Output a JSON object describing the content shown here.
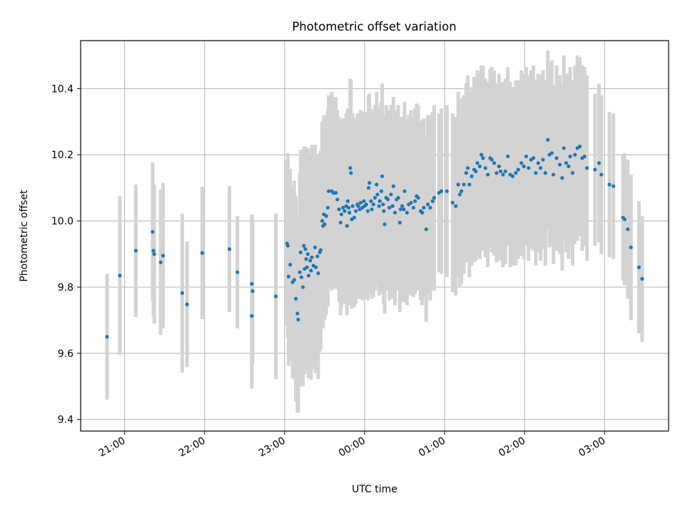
{
  "chart_data": {
    "type": "scatter",
    "title": "Photometric offset variation",
    "xlabel": "UTC time",
    "ylabel": "Photometric offset",
    "x_unit": "hours (UTC, relative to 00:00)",
    "xlim": [
      -3.55,
      3.8
    ],
    "ylim": [
      9.365,
      10.545
    ],
    "x_ticks": [
      -3,
      -2,
      -1,
      0,
      1,
      2,
      3
    ],
    "x_tick_labels": [
      "21:00",
      "22:00",
      "23:00",
      "00:00",
      "01:00",
      "02:00",
      "03:00"
    ],
    "y_ticks": [
      9.4,
      9.6,
      9.8,
      10.0,
      10.2,
      10.4
    ],
    "y_tick_labels": [
      "9.4",
      "9.6",
      "9.8",
      "10.0",
      "10.2",
      "10.4"
    ],
    "grid": true,
    "legend": false,
    "colors": {
      "points": "#1f77b4",
      "errorbars": "#d3d3d3",
      "grid": "#b0b0b0"
    },
    "points": [
      [
        -3.22,
        9.65,
        0.19
      ],
      [
        -3.06,
        9.835,
        0.24
      ],
      [
        -2.86,
        9.91,
        0.2
      ],
      [
        -2.65,
        9.967,
        0.21
      ],
      [
        -2.64,
        9.91,
        0.2
      ],
      [
        -2.63,
        9.9,
        0.21
      ],
      [
        -2.55,
        9.875,
        0.22
      ],
      [
        -2.52,
        9.895,
        0.22
      ],
      [
        -2.28,
        9.782,
        0.24
      ],
      [
        -2.22,
        9.748,
        0.19
      ],
      [
        -2.03,
        9.903,
        0.2
      ],
      [
        -1.69,
        9.915,
        0.19
      ],
      [
        -1.59,
        9.845,
        0.17
      ],
      [
        -1.41,
        9.81,
        0.21
      ],
      [
        -1.4,
        9.788,
        0.22
      ],
      [
        -1.41,
        9.713,
        0.22
      ],
      [
        -1.11,
        9.772,
        0.25
      ],
      [
        -0.97,
        9.932,
        0.25
      ],
      [
        -0.96,
        9.925,
        0.28
      ],
      [
        -0.95,
        9.832,
        0.27
      ],
      [
        -0.93,
        9.868,
        0.29
      ],
      [
        -0.9,
        9.815,
        0.29
      ],
      [
        -0.88,
        9.822,
        0.3
      ],
      [
        -0.86,
        9.765,
        0.31
      ],
      [
        -0.84,
        9.72,
        0.3
      ],
      [
        -0.83,
        9.702,
        0.28
      ],
      [
        -0.81,
        9.845,
        0.3
      ],
      [
        -0.8,
        9.905,
        0.31
      ],
      [
        -0.79,
        9.83,
        0.33
      ],
      [
        -0.77,
        9.8,
        0.3
      ],
      [
        -0.76,
        9.925,
        0.3
      ],
      [
        -0.75,
        9.855,
        0.32
      ],
      [
        -0.74,
        9.915,
        0.31
      ],
      [
        -0.73,
        9.885,
        0.33
      ],
      [
        -0.72,
        9.86,
        0.31
      ],
      [
        -0.71,
        9.9,
        0.32
      ],
      [
        -0.7,
        9.835,
        0.31
      ],
      [
        -0.68,
        9.88,
        0.32
      ],
      [
        -0.67,
        9.85,
        0.33
      ],
      [
        -0.66,
        9.89,
        0.34
      ],
      [
        -0.64,
        9.865,
        0.31
      ],
      [
        -0.62,
        9.92,
        0.31
      ],
      [
        -0.61,
        9.86,
        0.32
      ],
      [
        -0.59,
        9.893,
        0.31
      ],
      [
        -0.58,
        9.842,
        0.32
      ],
      [
        -0.56,
        9.905,
        0.3
      ],
      [
        -0.55,
        9.912,
        0.3
      ],
      [
        -0.53,
        10.0,
        0.3
      ],
      [
        -0.52,
        9.985,
        0.31
      ],
      [
        -0.51,
        10.02,
        0.3
      ],
      [
        -0.5,
        9.99,
        0.29
      ],
      [
        -0.48,
        10.015,
        0.3
      ],
      [
        -0.46,
        10.04,
        0.3
      ],
      [
        -0.45,
        10.09,
        0.29
      ],
      [
        -0.41,
        10.09,
        0.3
      ],
      [
        -0.39,
        10.085,
        0.28
      ],
      [
        -0.36,
        10.085,
        0.29
      ],
      [
        -0.34,
        10.065,
        0.27
      ],
      [
        -0.32,
        10.035,
        0.28
      ],
      [
        -0.3,
        9.995,
        0.28
      ],
      [
        -0.29,
        10.02,
        0.28
      ],
      [
        -0.27,
        10.04,
        0.27
      ],
      [
        -0.25,
        10.03,
        0.28
      ],
      [
        -0.23,
        10.045,
        0.28
      ],
      [
        -0.22,
        9.985,
        0.27
      ],
      [
        -0.21,
        10.06,
        0.28
      ],
      [
        -0.2,
        10.04,
        0.28
      ],
      [
        -0.19,
        10.025,
        0.28
      ],
      [
        -0.18,
        10.16,
        0.27
      ],
      [
        -0.17,
        10.145,
        0.28
      ],
      [
        -0.16,
        10.005,
        0.27
      ],
      [
        -0.15,
        10.045,
        0.28
      ],
      [
        -0.13,
        10.01,
        0.27
      ],
      [
        -0.11,
        10.03,
        0.28
      ],
      [
        -0.09,
        10.05,
        0.27
      ],
      [
        -0.08,
        10.045,
        0.28
      ],
      [
        -0.06,
        10.035,
        0.27
      ],
      [
        -0.05,
        10.055,
        0.28
      ],
      [
        -0.03,
        10.04,
        0.28
      ],
      [
        -0.01,
        10.06,
        0.27
      ],
      [
        0.0,
        10.045,
        0.28
      ],
      [
        0.02,
        10.05,
        0.28
      ],
      [
        0.04,
        10.03,
        0.27
      ],
      [
        0.05,
        10.1,
        0.28
      ],
      [
        0.06,
        10.115,
        0.27
      ],
      [
        0.08,
        10.06,
        0.28
      ],
      [
        0.09,
        10.035,
        0.27
      ],
      [
        0.11,
        10.05,
        0.28
      ],
      [
        0.13,
        10.07,
        0.28
      ],
      [
        0.15,
        10.11,
        0.28
      ],
      [
        0.16,
        10.08,
        0.27
      ],
      [
        0.18,
        10.045,
        0.27
      ],
      [
        0.19,
        10.06,
        0.28
      ],
      [
        0.21,
        10.09,
        0.27
      ],
      [
        0.22,
        10.135,
        0.28
      ],
      [
        0.23,
        10.05,
        0.27
      ],
      [
        0.24,
        10.03,
        0.28
      ],
      [
        0.25,
        9.99,
        0.27
      ],
      [
        0.27,
        10.07,
        0.28
      ],
      [
        0.29,
        10.065,
        0.27
      ],
      [
        0.31,
        10.04,
        0.28
      ],
      [
        0.33,
        10.08,
        0.27
      ],
      [
        0.35,
        10.045,
        0.28
      ],
      [
        0.36,
        10.105,
        0.27
      ],
      [
        0.38,
        10.025,
        0.28
      ],
      [
        0.4,
        10.065,
        0.27
      ],
      [
        0.42,
        10.07,
        0.28
      ],
      [
        0.44,
        9.995,
        0.27
      ],
      [
        0.45,
        10.035,
        0.28
      ],
      [
        0.47,
        10.045,
        0.27
      ],
      [
        0.49,
        10.035,
        0.28
      ],
      [
        0.5,
        10.09,
        0.27
      ],
      [
        0.53,
        10.025,
        0.28
      ],
      [
        0.55,
        10.05,
        0.27
      ],
      [
        0.58,
        10.055,
        0.28
      ],
      [
        0.61,
        10.04,
        0.27
      ],
      [
        0.63,
        10.06,
        0.28
      ],
      [
        0.65,
        10.075,
        0.28
      ],
      [
        0.67,
        10.07,
        0.28
      ],
      [
        0.7,
        10.03,
        0.27
      ],
      [
        0.72,
        10.025,
        0.28
      ],
      [
        0.74,
        10.04,
        0.27
      ],
      [
        0.77,
        9.975,
        0.28
      ],
      [
        0.79,
        10.05,
        0.27
      ],
      [
        0.82,
        10.04,
        0.28
      ],
      [
        0.85,
        10.06,
        0.27
      ],
      [
        0.87,
        10.07,
        0.28
      ],
      [
        0.93,
        10.085,
        0.24
      ],
      [
        0.96,
        10.09,
        0.25
      ],
      [
        1.03,
        10.09,
        0.26
      ],
      [
        1.1,
        10.055,
        0.27
      ],
      [
        1.14,
        10.045,
        0.27
      ],
      [
        1.17,
        10.11,
        0.28
      ],
      [
        1.19,
        10.08,
        0.28
      ],
      [
        1.21,
        10.09,
        0.28
      ],
      [
        1.24,
        10.11,
        0.27
      ],
      [
        1.27,
        10.145,
        0.27
      ],
      [
        1.29,
        10.16,
        0.28
      ],
      [
        1.31,
        10.11,
        0.28
      ],
      [
        1.34,
        10.135,
        0.27
      ],
      [
        1.37,
        10.155,
        0.28
      ],
      [
        1.39,
        10.15,
        0.27
      ],
      [
        1.41,
        10.175,
        0.28
      ],
      [
        1.44,
        10.165,
        0.28
      ],
      [
        1.46,
        10.2,
        0.27
      ],
      [
        1.48,
        10.19,
        0.28
      ],
      [
        1.51,
        10.16,
        0.27
      ],
      [
        1.54,
        10.14,
        0.28
      ],
      [
        1.57,
        10.19,
        0.27
      ],
      [
        1.59,
        10.185,
        0.28
      ],
      [
        1.62,
        10.175,
        0.28
      ],
      [
        1.65,
        10.145,
        0.27
      ],
      [
        1.68,
        10.165,
        0.28
      ],
      [
        1.7,
        10.15,
        0.27
      ],
      [
        1.73,
        10.14,
        0.28
      ],
      [
        1.76,
        10.15,
        0.28
      ],
      [
        1.79,
        10.195,
        0.27
      ],
      [
        1.82,
        10.14,
        0.28
      ],
      [
        1.85,
        10.135,
        0.27
      ],
      [
        1.89,
        10.145,
        0.28
      ],
      [
        1.92,
        10.155,
        0.27
      ],
      [
        1.96,
        10.175,
        0.28
      ],
      [
        1.99,
        10.165,
        0.28
      ],
      [
        2.02,
        10.195,
        0.27
      ],
      [
        2.05,
        10.16,
        0.28
      ],
      [
        2.08,
        10.185,
        0.27
      ],
      [
        2.11,
        10.19,
        0.28
      ],
      [
        2.14,
        10.145,
        0.28
      ],
      [
        2.17,
        10.175,
        0.27
      ],
      [
        2.2,
        10.16,
        0.28
      ],
      [
        2.23,
        10.185,
        0.27
      ],
      [
        2.26,
        10.145,
        0.28
      ],
      [
        2.29,
        10.245,
        0.27
      ],
      [
        2.31,
        10.2,
        0.28
      ],
      [
        2.34,
        10.205,
        0.28
      ],
      [
        2.36,
        10.14,
        0.27
      ],
      [
        2.4,
        10.19,
        0.28
      ],
      [
        2.44,
        10.17,
        0.27
      ],
      [
        2.47,
        10.13,
        0.28
      ],
      [
        2.49,
        10.22,
        0.28
      ],
      [
        2.52,
        10.175,
        0.27
      ],
      [
        2.55,
        10.165,
        0.28
      ],
      [
        2.57,
        10.195,
        0.27
      ],
      [
        2.6,
        10.145,
        0.28
      ],
      [
        2.63,
        10.2,
        0.27
      ],
      [
        2.66,
        10.22,
        0.28
      ],
      [
        2.69,
        10.225,
        0.27
      ],
      [
        2.72,
        10.19,
        0.28
      ],
      [
        2.75,
        10.195,
        0.27
      ],
      [
        2.78,
        10.16,
        0.28
      ],
      [
        2.88,
        10.155,
        0.23
      ],
      [
        2.93,
        10.175,
        0.24
      ],
      [
        2.96,
        10.14,
        0.24
      ],
      [
        3.06,
        10.11,
        0.22
      ],
      [
        3.11,
        10.105,
        0.22
      ],
      [
        3.23,
        10.01,
        0.19
      ],
      [
        3.25,
        10.005,
        0.2
      ],
      [
        3.29,
        9.975,
        0.21
      ],
      [
        3.33,
        9.92,
        0.22
      ],
      [
        3.43,
        9.86,
        0.2
      ],
      [
        3.47,
        9.825,
        0.19
      ]
    ]
  }
}
